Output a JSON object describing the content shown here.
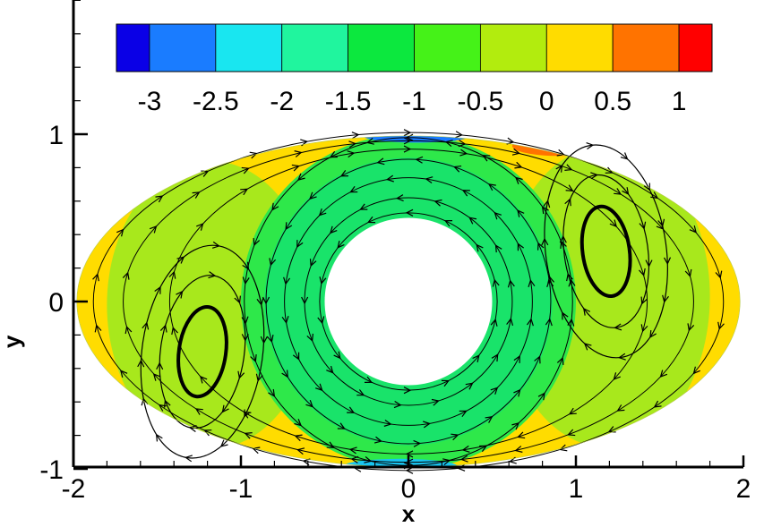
{
  "chart_data": {
    "type": "heatmap",
    "title": "",
    "xlabel": "x",
    "ylabel": "y",
    "xlim": [
      -2,
      2
    ],
    "ylim": [
      -1,
      1.8
    ],
    "x_ticks": [
      -2,
      -1,
      0,
      1,
      2
    ],
    "x_tick_labels": [
      "-2",
      "-1",
      "0",
      "1",
      "2"
    ],
    "y_ticks": [
      -1,
      0,
      1
    ],
    "y_tick_labels": [
      "-1",
      "0",
      "1"
    ],
    "domain": {
      "outer_boundary": "ellipse",
      "center": [
        0,
        0
      ],
      "semi_axis_x": 1.98,
      "semi_axis_y": 0.99,
      "inner_boundary": "circle",
      "inner_radius": 0.5
    },
    "colorbar": {
      "levels": [
        -3.25,
        -3,
        -2.5,
        -2,
        -1.5,
        -1,
        -0.5,
        0,
        0.5,
        1,
        1.25
      ],
      "tick_values": [
        -3,
        -2.5,
        -2,
        -1.5,
        -1,
        -0.5,
        0,
        0.5,
        1
      ],
      "tick_labels": [
        "-3",
        "-2.5",
        "-2",
        "-1.5",
        "-1",
        "-0.5",
        "0",
        "0.5",
        "1"
      ],
      "colors": [
        "#0a00e6",
        "#1a7cff",
        "#19e6f0",
        "#20f59e",
        "#0ce83e",
        "#45f218",
        "#b2ec0e",
        "#ffdc00",
        "#ff7300",
        "#ff0000"
      ],
      "placement": "top"
    },
    "regions": [
      {
        "name": "outer-band",
        "level": 0.25,
        "color": "#ffdc00"
      },
      {
        "name": "left-cell",
        "level": -0.25,
        "color": "#a8e81c"
      },
      {
        "name": "right-cell",
        "level": -0.25,
        "color": "#a8e81c"
      },
      {
        "name": "annulus-outer",
        "level": -0.75,
        "color": "#2ee84a"
      },
      {
        "name": "annulus-inner",
        "level": -1.25,
        "color": "#19e36a"
      },
      {
        "name": "top-extreme",
        "level": -2.5,
        "color": "#1a7cff"
      },
      {
        "name": "bottom-extreme",
        "level": -2.5,
        "color": "#19c4f0"
      },
      {
        "name": "top-right-extreme",
        "level": 0.75,
        "color": "#ff7300"
      }
    ],
    "streamlines": {
      "annulus_radii": [
        0.53,
        0.62,
        0.74,
        0.85,
        0.98
      ],
      "right_vortex_center": [
        1.18,
        0.3
      ],
      "left_vortex_center": [
        -1.23,
        -0.3
      ],
      "vortex_radii": [
        [
          0.14,
          0.27
        ],
        [
          0.25,
          0.46
        ],
        [
          0.36,
          0.64
        ]
      ],
      "outer_loop_scales": [
        0.72,
        0.86,
        0.95
      ]
    }
  }
}
